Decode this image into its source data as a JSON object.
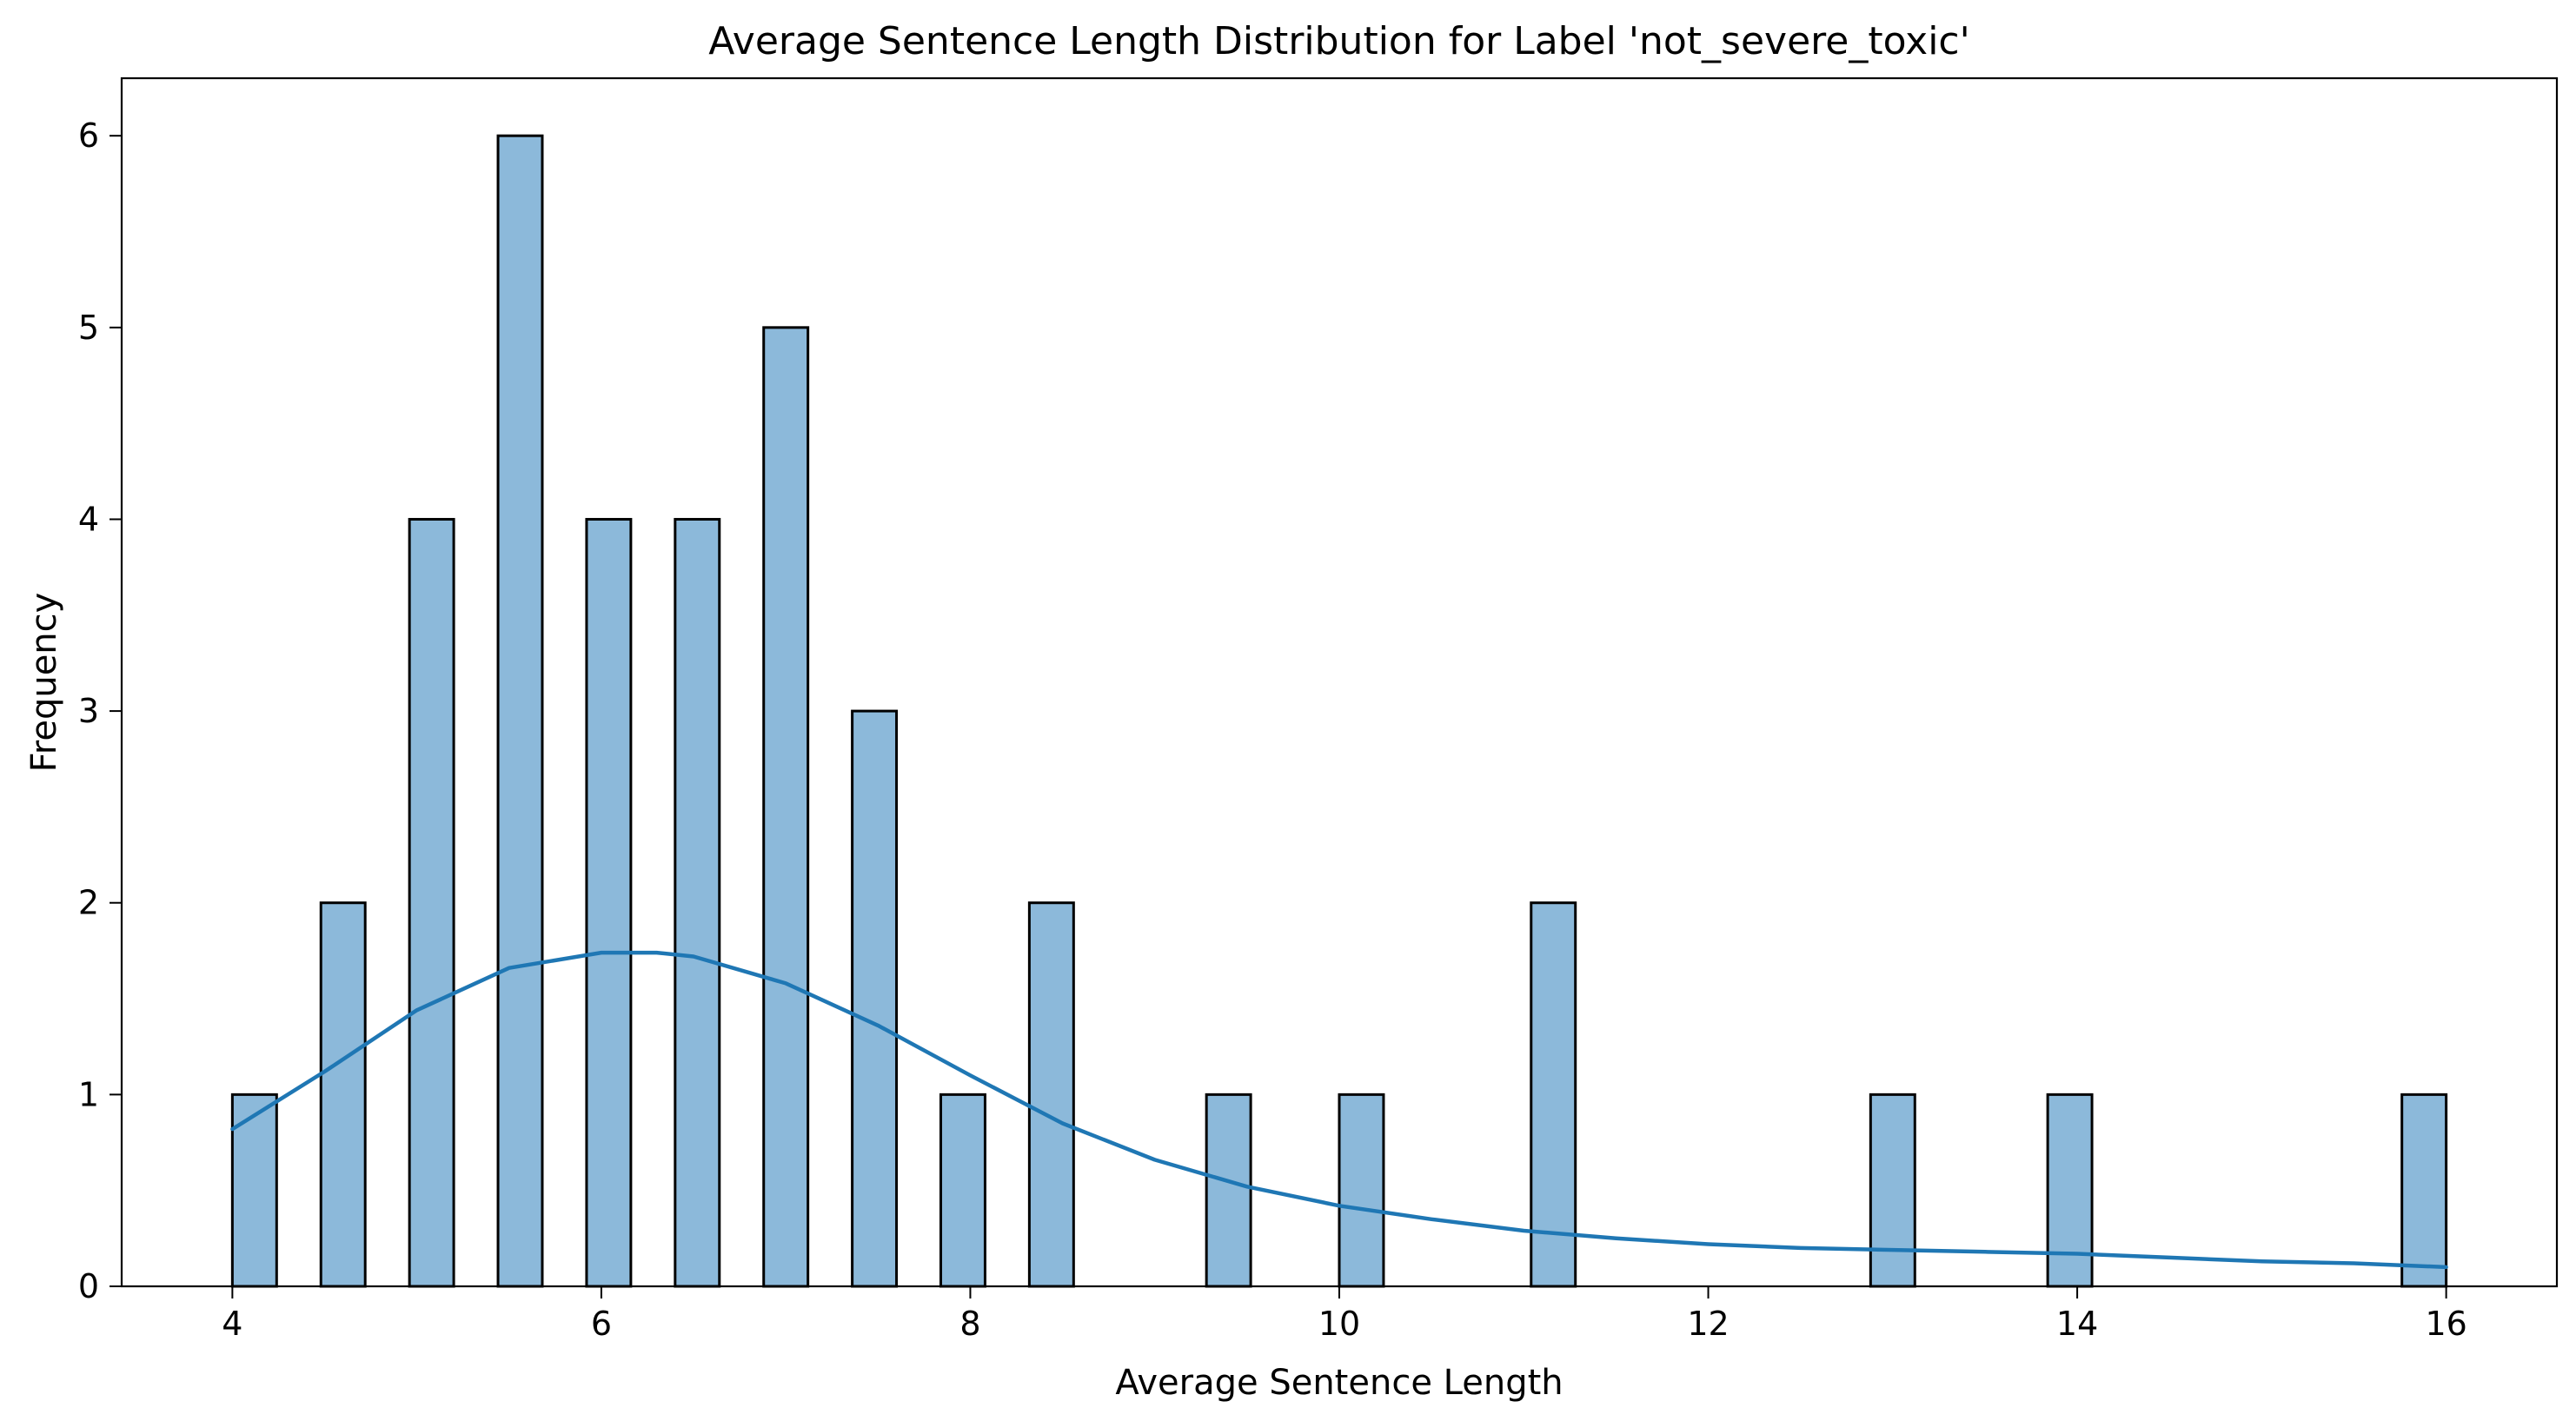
{
  "chart_data": {
    "type": "bar",
    "title": "Average Sentence Length Distribution for Label 'not_severe_toxic'",
    "xlabel": "Average Sentence Length",
    "ylabel": "Frequency",
    "xlim": [
      3.4,
      16.6
    ],
    "ylim": [
      0,
      6.3
    ],
    "xticks": [
      4,
      6,
      8,
      10,
      12,
      14,
      16
    ],
    "yticks": [
      0,
      1,
      2,
      3,
      4,
      5,
      6
    ],
    "bin_width": 0.24,
    "bins": [
      {
        "x0": 4.0,
        "count": 1
      },
      {
        "x0": 4.48,
        "count": 2
      },
      {
        "x0": 4.96,
        "count": 4
      },
      {
        "x0": 5.44,
        "count": 6
      },
      {
        "x0": 5.92,
        "count": 4
      },
      {
        "x0": 6.4,
        "count": 4
      },
      {
        "x0": 6.88,
        "count": 5
      },
      {
        "x0": 7.36,
        "count": 3
      },
      {
        "x0": 7.84,
        "count": 1
      },
      {
        "x0": 8.32,
        "count": 2
      },
      {
        "x0": 9.28,
        "count": 1
      },
      {
        "x0": 10.0,
        "count": 1
      },
      {
        "x0": 11.04,
        "count": 2
      },
      {
        "x0": 12.88,
        "count": 1
      },
      {
        "x0": 13.84,
        "count": 1
      },
      {
        "x0": 15.76,
        "count": 1
      }
    ],
    "kde": {
      "x": [
        4.0,
        4.5,
        5.0,
        5.5,
        6.0,
        6.3,
        6.5,
        7.0,
        7.5,
        8.0,
        8.5,
        9.0,
        9.5,
        10.0,
        10.5,
        11.0,
        11.5,
        12.0,
        12.5,
        13.0,
        13.5,
        14.0,
        14.5,
        15.0,
        15.5,
        16.0
      ],
      "y": [
        0.82,
        1.12,
        1.44,
        1.66,
        1.74,
        1.74,
        1.72,
        1.58,
        1.36,
        1.1,
        0.85,
        0.66,
        0.52,
        0.42,
        0.35,
        0.29,
        0.25,
        0.22,
        0.2,
        0.19,
        0.18,
        0.17,
        0.15,
        0.13,
        0.12,
        0.1
      ]
    },
    "bar_color": "#8cb9da",
    "bar_edge_color": "#000000",
    "kde_color": "#1f77b4",
    "grid": false,
    "legend": "none"
  }
}
